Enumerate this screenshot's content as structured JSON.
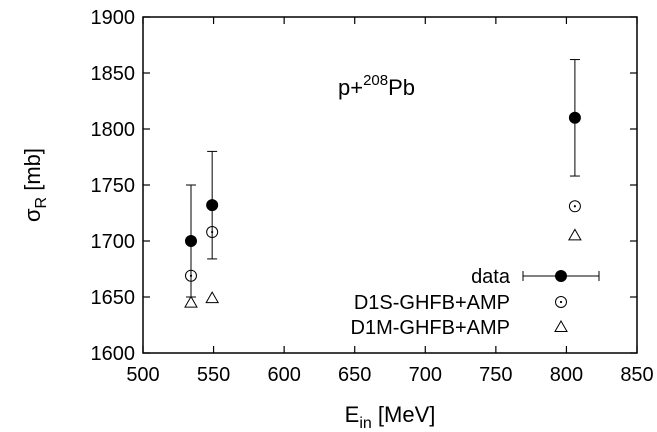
{
  "chart_data": {
    "type": "scatter",
    "xlabel": {
      "main": "E",
      "sub": "in",
      "unit": " [MeV]"
    },
    "ylabel": {
      "main": "σ",
      "sub": "R",
      "unit": " [mb]"
    },
    "xlim": [
      500,
      850
    ],
    "ylim": [
      1600,
      1900
    ],
    "xticks": [
      500,
      550,
      600,
      650,
      700,
      750,
      800,
      850
    ],
    "yticks": [
      1600,
      1650,
      1700,
      1750,
      1800,
      1850,
      1900
    ],
    "grid": false,
    "legend_position": "bottom-right",
    "annotation": {
      "prefix": "p+",
      "sup": "208",
      "suffix": "Pb",
      "x": 655,
      "y": 1840
    },
    "series": [
      {
        "name": "data",
        "marker": "filled-circle",
        "points": [
          {
            "x": 534,
            "y": 1700,
            "yerr_low": 1650,
            "yerr_high": 1750
          },
          {
            "x": 549,
            "y": 1732,
            "yerr_low": 1684,
            "yerr_high": 1780
          },
          {
            "x": 806,
            "y": 1810,
            "yerr_low": 1758,
            "yerr_high": 1862
          }
        ]
      },
      {
        "name": "D1S-GHFB+AMP",
        "marker": "open-circle",
        "points": [
          {
            "x": 534,
            "y": 1669
          },
          {
            "x": 549,
            "y": 1708
          },
          {
            "x": 806,
            "y": 1731
          }
        ]
      },
      {
        "name": "D1M-GHFB+AMP",
        "marker": "open-triangle",
        "points": [
          {
            "x": 534,
            "y": 1645
          },
          {
            "x": 549,
            "y": 1649
          },
          {
            "x": 806,
            "y": 1705
          }
        ]
      }
    ]
  }
}
